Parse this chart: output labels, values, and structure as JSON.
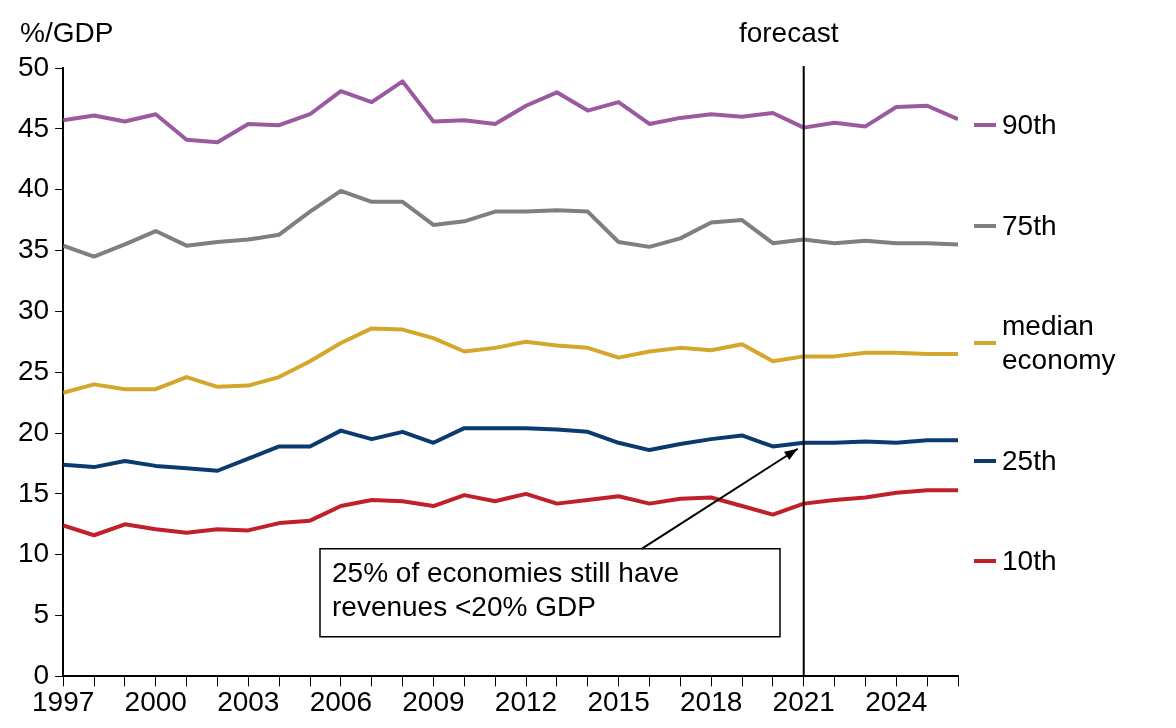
{
  "chart_data": {
    "type": "line",
    "ylabel": "%/GDP",
    "x": [
      1997,
      1998,
      1999,
      2000,
      2001,
      2002,
      2003,
      2004,
      2005,
      2006,
      2007,
      2008,
      2009,
      2010,
      2011,
      2012,
      2013,
      2014,
      2015,
      2016,
      2017,
      2018,
      2019,
      2020,
      2021,
      2022,
      2023,
      2024,
      2025,
      2026
    ],
    "series": [
      {
        "name": "90th",
        "color": "#9b59a0",
        "values": [
          45.7,
          46.1,
          45.6,
          46.2,
          44.1,
          43.9,
          45.4,
          45.3,
          46.2,
          48.1,
          47.2,
          48.9,
          45.6,
          45.7,
          45.4,
          46.9,
          48.0,
          46.5,
          47.2,
          45.4,
          45.9,
          46.2,
          46.0,
          46.3,
          45.1,
          45.5,
          45.2,
          46.8,
          46.9,
          45.8
        ]
      },
      {
        "name": "75th",
        "color": "#7f7f7f",
        "values": [
          35.4,
          34.5,
          35.5,
          36.6,
          35.4,
          35.7,
          35.9,
          36.3,
          38.2,
          39.9,
          39.0,
          39.0,
          37.1,
          37.4,
          38.2,
          38.2,
          38.3,
          38.2,
          35.7,
          35.3,
          36.0,
          37.3,
          37.5,
          35.6,
          35.9,
          35.6,
          35.8,
          35.6,
          35.6,
          35.5
        ]
      },
      {
        "name": "median economy",
        "color": "#d4a72c",
        "values": [
          23.3,
          24.0,
          23.6,
          23.6,
          24.6,
          23.8,
          23.9,
          24.6,
          25.9,
          27.4,
          28.6,
          28.5,
          27.8,
          26.7,
          27.0,
          27.5,
          27.2,
          27.0,
          26.2,
          26.7,
          27.0,
          26.8,
          27.3,
          25.9,
          26.3,
          26.3,
          26.6,
          26.6,
          26.5,
          26.5
        ]
      },
      {
        "name": "25th",
        "color": "#0b3a6e",
        "values": [
          17.4,
          17.2,
          17.7,
          17.3,
          17.1,
          16.9,
          17.9,
          18.9,
          18.9,
          20.2,
          19.5,
          20.1,
          19.2,
          20.4,
          20.4,
          20.4,
          20.3,
          20.1,
          19.2,
          18.6,
          19.1,
          19.5,
          19.8,
          18.9,
          19.2,
          19.2,
          19.3,
          19.2,
          19.4,
          19.4
        ]
      },
      {
        "name": "10th",
        "color": "#c0202a",
        "values": [
          12.4,
          11.6,
          12.5,
          12.1,
          11.8,
          12.1,
          12.0,
          12.6,
          12.8,
          14.0,
          14.5,
          14.4,
          14.0,
          14.9,
          14.4,
          15.0,
          14.2,
          14.5,
          14.8,
          14.2,
          14.6,
          14.7,
          14.0,
          13.3,
          14.2,
          14.5,
          14.7,
          15.1,
          15.3,
          15.3
        ]
      }
    ],
    "xlim": [
      1997,
      2026
    ],
    "xticks": [
      1997,
      {
        "value": 1998,
        "label": null
      },
      {
        "value": 1999,
        "label": null
      },
      2000,
      {
        "value": 2001,
        "label": null
      },
      {
        "value": 2002,
        "label": null
      },
      2003,
      {
        "value": 2004,
        "label": null
      },
      {
        "value": 2005,
        "label": null
      },
      2006,
      {
        "value": 2007,
        "label": null
      },
      {
        "value": 2008,
        "label": null
      },
      2009,
      {
        "value": 2010,
        "label": null
      },
      {
        "value": 2011,
        "label": null
      },
      2012,
      {
        "value": 2013,
        "label": null
      },
      {
        "value": 2014,
        "label": null
      },
      2015,
      {
        "value": 2016,
        "label": null
      },
      {
        "value": 2017,
        "label": null
      },
      2018,
      {
        "value": 2019,
        "label": null
      },
      {
        "value": 2020,
        "label": null
      },
      2021,
      {
        "value": 2022,
        "label": null
      },
      {
        "value": 2023,
        "label": null
      },
      2024,
      {
        "value": 2025,
        "label": null
      },
      {
        "value": 2026,
        "label": null
      }
    ],
    "ylim": [
      0,
      50
    ],
    "yticks": [
      0,
      5,
      10,
      15,
      20,
      25,
      30,
      35,
      40,
      45,
      50
    ],
    "grid": false,
    "legend": "right",
    "marker": "none",
    "line_style": "solid",
    "ref_lines": [
      {
        "axis": "x",
        "value": 2021,
        "label": "forecast",
        "color": "#000000"
      }
    ],
    "annotations": [
      {
        "text": "25% of economies still have revenues <20% GDP",
        "x": 2021,
        "y": 19.2
      }
    ]
  }
}
